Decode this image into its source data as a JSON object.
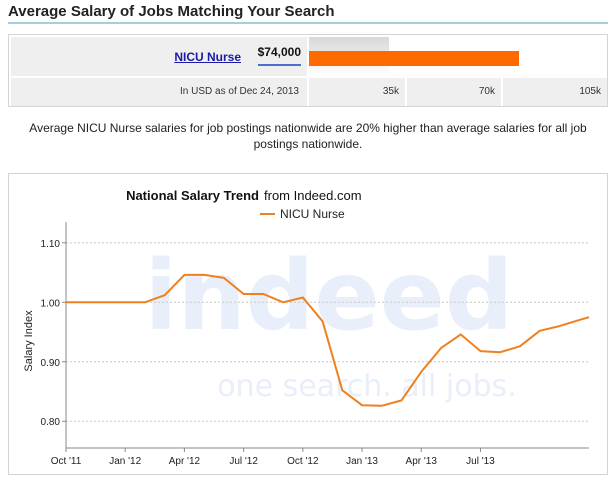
{
  "heading": "Average Salary of Jobs Matching Your Search",
  "salary_summary": {
    "job_title": "NICU Nurse",
    "salary": "$74,000",
    "salary_value": 74000,
    "scale_max": 105000,
    "note": "In USD as of Dec 24, 2013",
    "ticks": [
      "35k",
      "70k",
      "105k"
    ],
    "bar_color": "#ff6a00"
  },
  "comparison_text": "Average NICU Nurse salaries for job postings nationwide are 20% higher than average salaries for all job postings nationwide.",
  "watermark": {
    "brand": "indeed",
    "tagline": "one search. all jobs."
  },
  "chart_data": {
    "type": "line",
    "title": "National Salary Trend",
    "title_suffix": "from Indeed.com",
    "ylabel": "Salary Index",
    "xlabel": "",
    "ylim": [
      0.755,
      1.135
    ],
    "yticks": [
      0.8,
      0.9,
      1.0,
      1.1
    ],
    "ytick_labels": [
      "0.80",
      "0.90",
      "1.00",
      "1.10"
    ],
    "grid": true,
    "legend_position": "top-center",
    "x_range": [
      0,
      26.5
    ],
    "xticks": [
      0,
      3,
      6,
      9,
      12,
      15,
      18,
      21
    ],
    "xtick_labels": [
      "Oct '11",
      "Jan '12",
      "Apr '12",
      "Jul '12",
      "Oct '12",
      "Jan '13",
      "Apr '13",
      "Jul '13"
    ],
    "series": [
      {
        "name": "NICU Nurse",
        "color": "#f07f1e",
        "x": [
          0,
          1,
          2,
          3,
          4,
          5,
          6,
          7,
          8,
          9,
          10,
          11,
          12,
          13,
          14,
          15,
          16,
          17,
          18,
          19,
          20,
          21,
          22,
          23,
          24,
          25,
          26,
          26.5
        ],
        "y": [
          1.0,
          1.0,
          1.0,
          1.0,
          1.0,
          1.012,
          1.046,
          1.046,
          1.041,
          1.014,
          1.014,
          1.0,
          1.008,
          0.968,
          0.852,
          0.827,
          0.826,
          0.835,
          0.883,
          0.923,
          0.946,
          0.918,
          0.916,
          0.926,
          0.952,
          0.96,
          0.97,
          0.975
        ]
      }
    ]
  }
}
